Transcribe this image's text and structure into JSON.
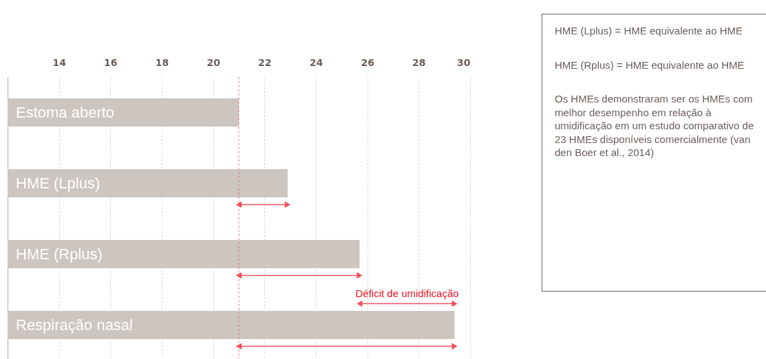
{
  "chart_data": {
    "type": "bar",
    "orientation": "horizontal",
    "categories": [
      "Estoma aberto",
      "HME (Lplus)",
      "HME (Rplus)",
      "Respiração nasal"
    ],
    "values": [
      21,
      22.9,
      25.7,
      29.4
    ],
    "color": "#cdc5c0",
    "xlim": [
      12,
      30
    ],
    "xticks": [
      14,
      16,
      18,
      20,
      22,
      24,
      26,
      28,
      30
    ],
    "grid": "x",
    "ref_lines": [
      {
        "axis": "x",
        "value": 21,
        "color": "#f0505a",
        "line_style": "dashed"
      }
    ],
    "annotations": [
      "Déficit de umidificação",
      "HME (Lplus) = HME equivalente ao HME",
      "HME (Rplus) = HME equivalente ao HME",
      "Os HMEs demonstraram ser os HMEs com melhor desempenho em relação à umidificação em um estudo comparativo de 23 HMEs disponíveis comercialmente (van den Boer et al., 2014)"
    ]
  }
}
